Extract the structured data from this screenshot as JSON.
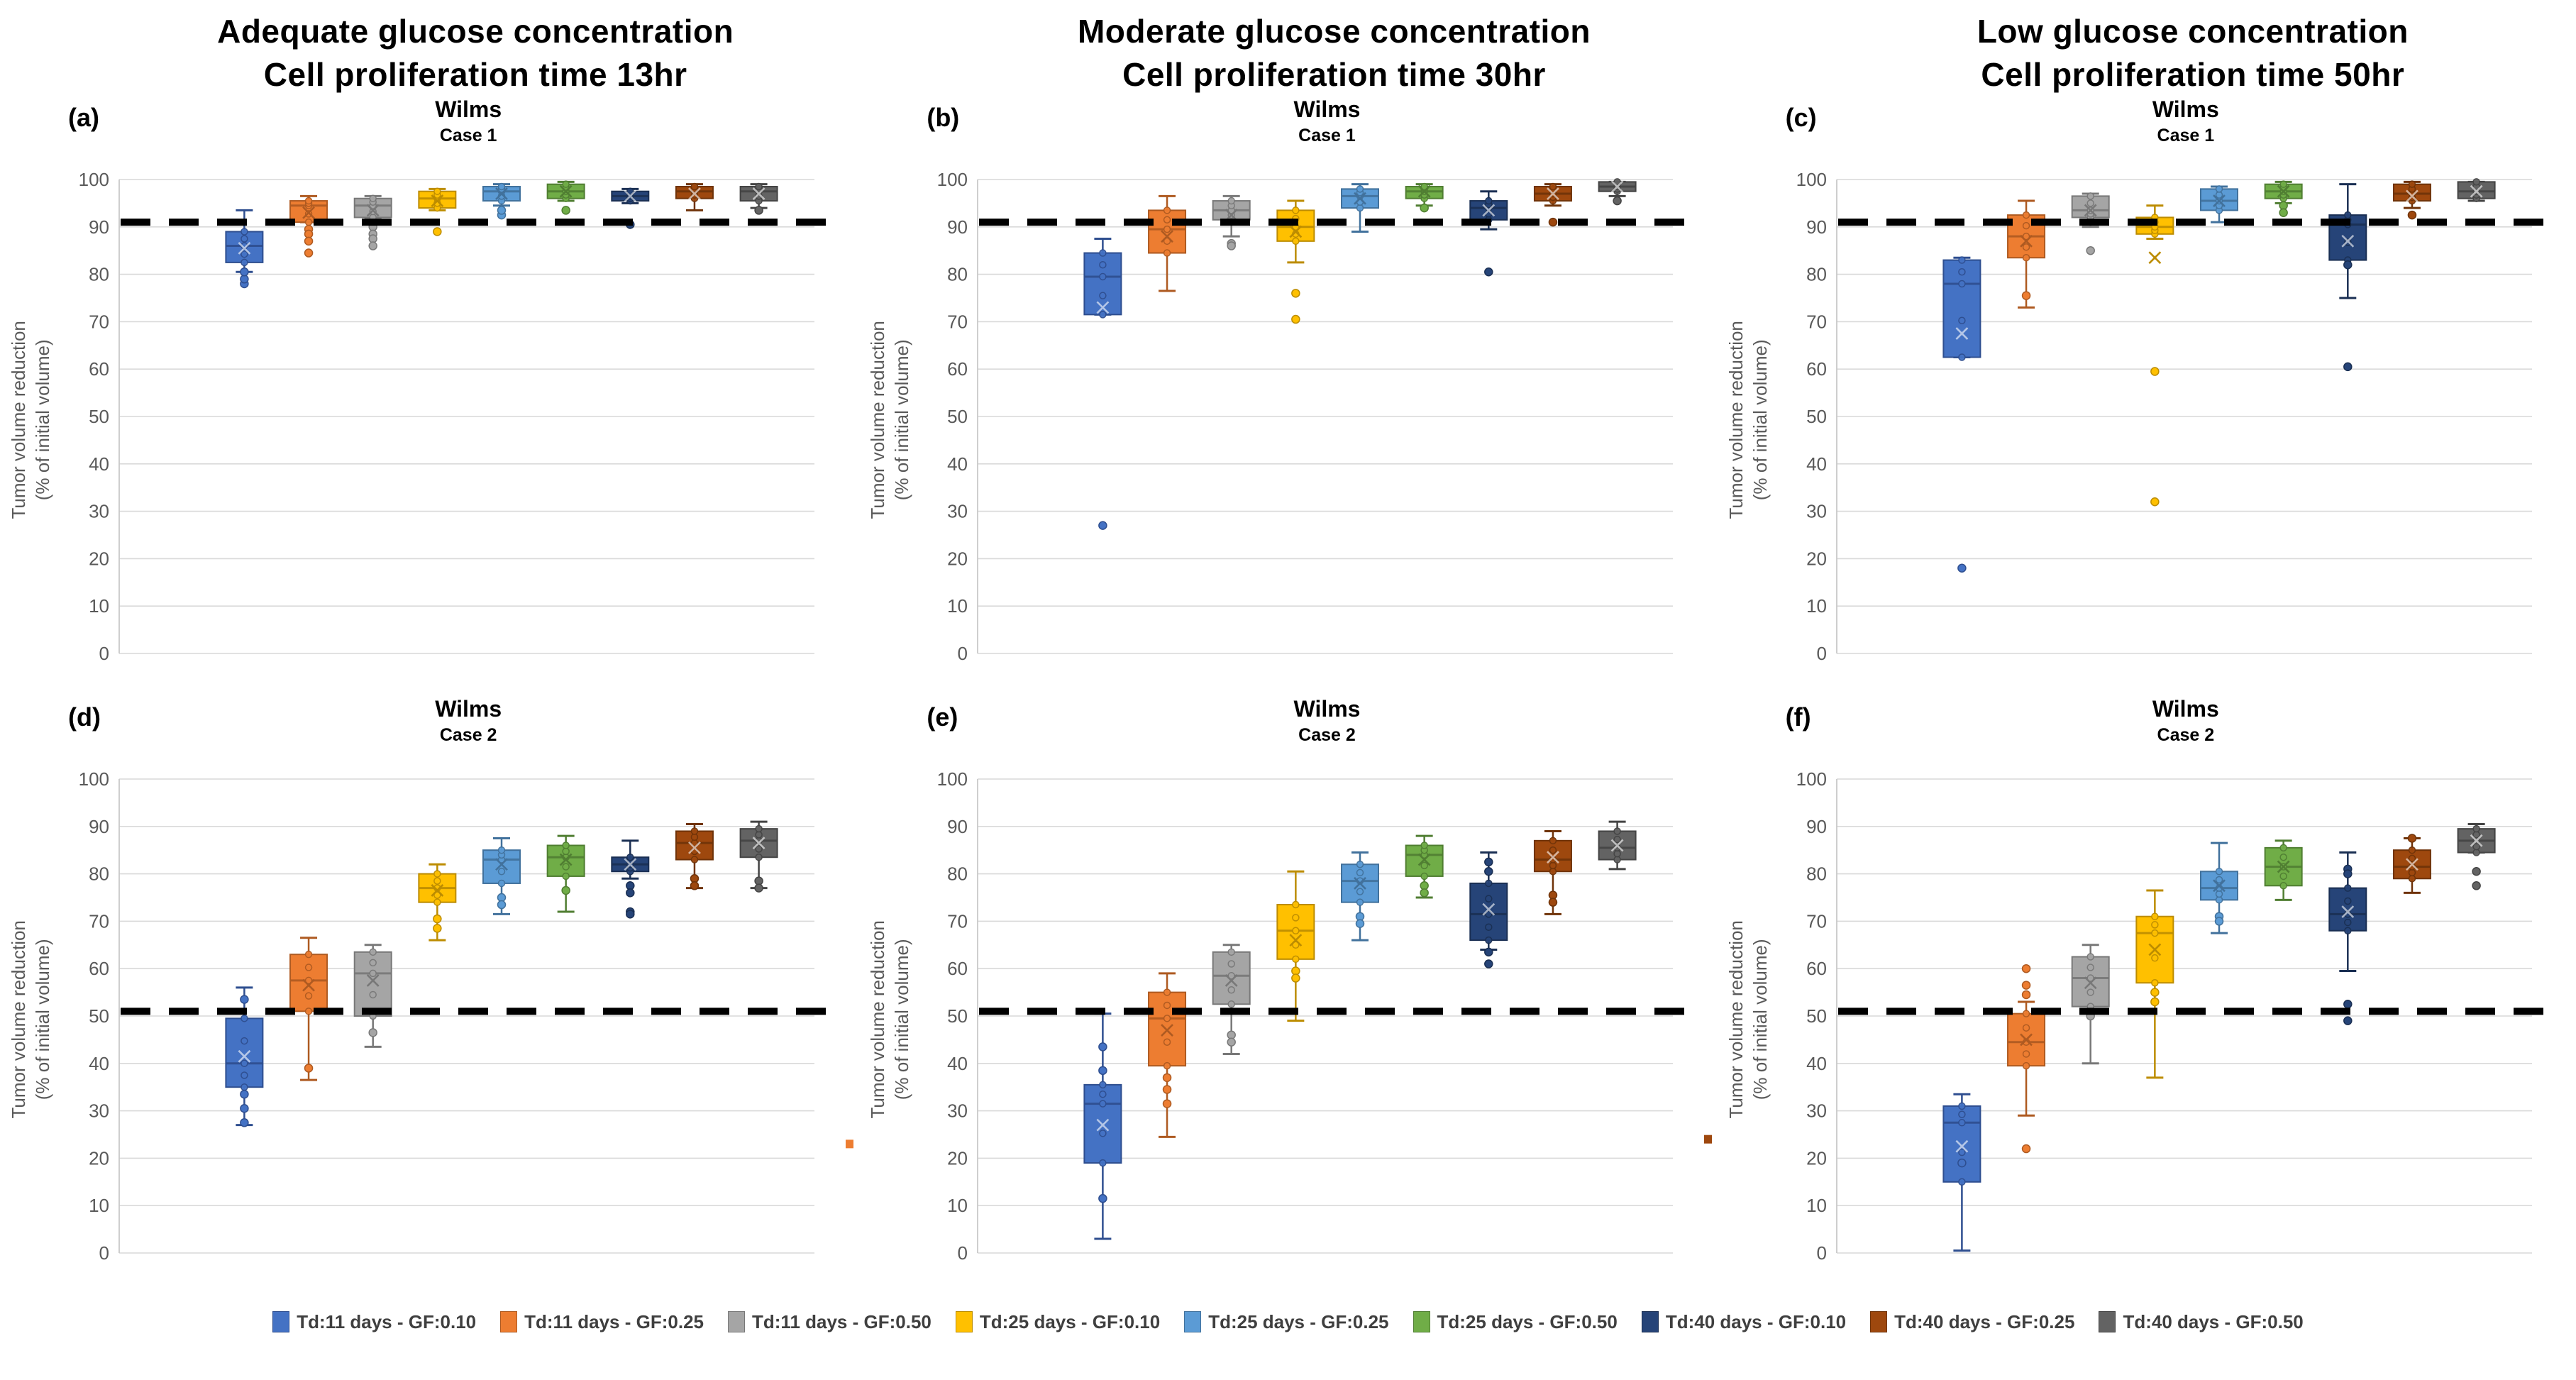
{
  "figure": {
    "column_headers": [
      {
        "line1": "Adequate glucose concentration",
        "line2": "Cell proliferation time 13hr"
      },
      {
        "line1": "Moderate glucose concentration",
        "line2": "Cell proliferation time 30hr"
      },
      {
        "line1": "Low glucose concentration",
        "line2": "Cell proliferation time 50hr"
      }
    ],
    "y_axis_label_line1": "Tumor volume reduction",
    "y_axis_label_line2": "(% of initial volume)",
    "plot_colors": {
      "background": "#FFFFFF",
      "grid": "#D9D9D9",
      "axis": "#C9C9C9",
      "tick_text": "#595959",
      "threshold": "#000000"
    }
  },
  "legend": [
    {
      "label": "Td:11 days - GF:0.10",
      "fill": "#4472C4",
      "edge": "#2E4E8F"
    },
    {
      "label": "Td:11 days - GF:0.25",
      "fill": "#ED7D31",
      "edge": "#AE5A21"
    },
    {
      "label": "Td:11 days - GF:0.50",
      "fill": "#A5A5A5",
      "edge": "#787878"
    },
    {
      "label": "Td:25 days - GF:0.10",
      "fill": "#FFC000",
      "edge": "#BC8C00"
    },
    {
      "label": "Td:25 days - GF:0.25",
      "fill": "#5B9BD5",
      "edge": "#41719C"
    },
    {
      "label": "Td:25 days - GF:0.50",
      "fill": "#70AD47",
      "edge": "#507E32"
    },
    {
      "label": "Td:40 days - GF:0.10",
      "fill": "#264478",
      "edge": "#1A2F53"
    },
    {
      "label": "Td:40 days - GF:0.25",
      "fill": "#9E480E",
      "edge": "#6F3309"
    },
    {
      "label": "Td:40 days - GF:0.50",
      "fill": "#636363",
      "edge": "#444444"
    }
  ],
  "chart_data": [
    {
      "id": "a",
      "panel_label": "(a)",
      "title": "Wilms",
      "subtitle": "Case 1",
      "type": "box",
      "threshold": 91,
      "ylim": [
        0,
        100
      ],
      "ytick_step": 10,
      "series": [
        {
          "name": "Td:11 days - GF:0.10",
          "lo": 80.5,
          "q1": 82.5,
          "med": 86,
          "q3": 89,
          "hi": 93.5,
          "mean": 85.5,
          "out": [
            78,
            79,
            80.5
          ]
        },
        {
          "name": "Td:11 days - GF:0.25",
          "lo": 91,
          "q1": 91,
          "med": 94.5,
          "q3": 95.5,
          "hi": 96.5,
          "mean": 93,
          "out": [
            89.5,
            88.5,
            87,
            84.5
          ]
        },
        {
          "name": "Td:11 days - GF:0.50",
          "lo": 92,
          "q1": 92,
          "med": 94.5,
          "q3": 96,
          "hi": 96.5,
          "mean": 93.5,
          "out": [
            90,
            88.5,
            87.5,
            86
          ]
        },
        {
          "name": "Td:25 days - GF:0.10",
          "lo": 93.5,
          "q1": 94,
          "med": 96,
          "q3": 97.5,
          "hi": 98,
          "mean": 95.5,
          "out": [
            89
          ]
        },
        {
          "name": "Td:25 days - GF:0.25",
          "lo": 94.5,
          "q1": 95.5,
          "med": 97.5,
          "q3": 98.5,
          "hi": 99,
          "mean": 97,
          "out": [
            92.5,
            93.5
          ]
        },
        {
          "name": "Td:25 days - GF:0.50",
          "lo": 95.5,
          "q1": 96,
          "med": 97.5,
          "q3": 99,
          "hi": 99.5,
          "mean": 97.5,
          "out": [
            93.5
          ]
        },
        {
          "name": "Td:40 days - GF:0.10",
          "lo": 95,
          "q1": 95.5,
          "med": 96.5,
          "q3": 97.5,
          "hi": 98,
          "mean": 96.5,
          "out": [
            90.5
          ]
        },
        {
          "name": "Td:40 days - GF:0.25",
          "lo": 93.5,
          "q1": 96,
          "med": 97.5,
          "q3": 98.5,
          "hi": 99,
          "mean": 97,
          "out": []
        },
        {
          "name": "Td:40 days - GF:0.50",
          "lo": 94,
          "q1": 95.5,
          "med": 97.5,
          "q3": 98.5,
          "hi": 99,
          "mean": 97,
          "out": [
            93.5
          ]
        }
      ]
    },
    {
      "id": "b",
      "panel_label": "(b)",
      "title": "Wilms",
      "subtitle": "Case 1",
      "type": "box",
      "threshold": 91,
      "ylim": [
        0,
        100
      ],
      "ytick_step": 10,
      "series": [
        {
          "name": "Td:11 days - GF:0.10",
          "lo": 71.5,
          "q1": 71.5,
          "med": 79.5,
          "q3": 84.5,
          "hi": 87.5,
          "mean": 73,
          "out": [
            27
          ]
        },
        {
          "name": "Td:11 days - GF:0.25",
          "lo": 76.5,
          "q1": 84.5,
          "med": 89.5,
          "q3": 93.5,
          "hi": 96.5,
          "mean": 88,
          "out": []
        },
        {
          "name": "Td:11 days - GF:0.50",
          "lo": 88,
          "q1": 91.5,
          "med": 93.5,
          "q3": 95.5,
          "hi": 96.5,
          "mean": 92.5,
          "out": [
            86.5,
            86
          ]
        },
        {
          "name": "Td:25 days - GF:0.10",
          "lo": 82.5,
          "q1": 87,
          "med": 90,
          "q3": 93.5,
          "hi": 95.5,
          "mean": 89,
          "out": [
            76,
            70.5
          ]
        },
        {
          "name": "Td:25 days - GF:0.25",
          "lo": 89,
          "q1": 94,
          "med": 96.5,
          "q3": 98,
          "hi": 99,
          "mean": 96,
          "out": []
        },
        {
          "name": "Td:25 days - GF:0.50",
          "lo": 94.5,
          "q1": 96,
          "med": 97.5,
          "q3": 98.5,
          "hi": 99,
          "mean": 97.5,
          "out": [
            94
          ]
        },
        {
          "name": "Td:40 days - GF:0.10",
          "lo": 89.5,
          "q1": 91.5,
          "med": 94,
          "q3": 95.5,
          "hi": 97.5,
          "mean": 93.5,
          "out": [
            80.5
          ]
        },
        {
          "name": "Td:40 days - GF:0.25",
          "lo": 94.5,
          "q1": 95.5,
          "med": 97,
          "q3": 98.5,
          "hi": 99,
          "mean": 97,
          "out": [
            91
          ]
        },
        {
          "name": "Td:40 days - GF:0.50",
          "lo": 96.5,
          "q1": 97.5,
          "med": 98.5,
          "q3": 99.5,
          "hi": 99.5,
          "mean": 98.5,
          "out": [
            95.5
          ]
        }
      ]
    },
    {
      "id": "c",
      "panel_label": "(c)",
      "title": "Wilms",
      "subtitle": "Case 1",
      "type": "box",
      "threshold": 91,
      "ylim": [
        0,
        100
      ],
      "ytick_step": 10,
      "series": [
        {
          "name": "Td:11 days - GF:0.10",
          "lo": 62.5,
          "q1": 62.5,
          "med": 78,
          "q3": 83,
          "hi": 83.5,
          "mean": 67.5,
          "out": [
            18
          ]
        },
        {
          "name": "Td:11 days - GF:0.25",
          "lo": 73,
          "q1": 83.5,
          "med": 88,
          "q3": 92.5,
          "hi": 95.5,
          "mean": 87,
          "out": [
            75.5
          ]
        },
        {
          "name": "Td:11 days - GF:0.50",
          "lo": 90,
          "q1": 92,
          "med": 93.5,
          "q3": 96.5,
          "hi": 97,
          "mean": 93.5,
          "out": [
            85
          ]
        },
        {
          "name": "Td:25 days - GF:0.10",
          "lo": 87.5,
          "q1": 88.5,
          "med": 90,
          "q3": 92,
          "hi": 94.5,
          "mean": 83.5,
          "out": [
            59.5,
            32
          ]
        },
        {
          "name": "Td:25 days - GF:0.25",
          "lo": 91,
          "q1": 93.5,
          "med": 95.5,
          "q3": 98,
          "hi": 98.5,
          "mean": 95.5,
          "out": []
        },
        {
          "name": "Td:25 days - GF:0.50",
          "lo": 95,
          "q1": 96,
          "med": 97.5,
          "q3": 99,
          "hi": 99.5,
          "mean": 97.5,
          "out": [
            94.5,
            93
          ]
        },
        {
          "name": "Td:40 days - GF:0.10",
          "lo": 75,
          "q1": 83,
          "med": 90.5,
          "q3": 92.5,
          "hi": 99,
          "mean": 87,
          "out": [
            82,
            60.5
          ]
        },
        {
          "name": "Td:40 days - GF:0.25",
          "lo": 94,
          "q1": 95.5,
          "med": 97,
          "q3": 99,
          "hi": 99.5,
          "mean": 96.5,
          "out": [
            92.5
          ]
        },
        {
          "name": "Td:40 days - GF:0.50",
          "lo": 95.5,
          "q1": 96,
          "med": 97.5,
          "q3": 99.5,
          "hi": 99.5,
          "mean": 97.5,
          "out": []
        }
      ]
    },
    {
      "id": "d",
      "panel_label": "(d)",
      "title": "Wilms",
      "subtitle": "Case 2",
      "type": "box",
      "threshold": 51,
      "ylim": [
        0,
        100
      ],
      "ytick_step": 10,
      "stray_marker": {
        "value": 23,
        "color": "#ED7D31"
      },
      "series": [
        {
          "name": "Td:11 days - GF:0.10",
          "lo": 27,
          "q1": 35,
          "med": 40,
          "q3": 49.5,
          "hi": 56,
          "mean": 41.5,
          "out": [
            53.5,
            33.5,
            30.5,
            27.5
          ]
        },
        {
          "name": "Td:11 days - GF:0.25",
          "lo": 36.5,
          "q1": 51,
          "med": 57.5,
          "q3": 63,
          "hi": 66.5,
          "mean": 56.5,
          "out": [
            39
          ]
        },
        {
          "name": "Td:11 days - GF:0.50",
          "lo": 43.5,
          "q1": 50,
          "med": 59,
          "q3": 63.5,
          "hi": 65,
          "mean": 57.5,
          "out": [
            46.5
          ]
        },
        {
          "name": "Td:25 days - GF:0.10",
          "lo": 66,
          "q1": 74,
          "med": 77,
          "q3": 80,
          "hi": 82,
          "mean": 76.5,
          "out": [
            70.5,
            68.5
          ]
        },
        {
          "name": "Td:25 days - GF:0.25",
          "lo": 71.5,
          "q1": 78,
          "med": 83,
          "q3": 85,
          "hi": 87.5,
          "mean": 82,
          "out": [
            75,
            73.5
          ]
        },
        {
          "name": "Td:25 days - GF:0.50",
          "lo": 72,
          "q1": 79.5,
          "med": 83.5,
          "q3": 86,
          "hi": 88,
          "mean": 83,
          "out": [
            76.5
          ]
        },
        {
          "name": "Td:40 days - GF:0.10",
          "lo": 79,
          "q1": 80.5,
          "med": 82,
          "q3": 83.5,
          "hi": 87,
          "mean": 82,
          "out": [
            77.5,
            76,
            72,
            71.5
          ]
        },
        {
          "name": "Td:40 days - GF:0.25",
          "lo": 77,
          "q1": 83,
          "med": 86.5,
          "q3": 89,
          "hi": 90.5,
          "mean": 85.5,
          "out": [
            79,
            77.5
          ]
        },
        {
          "name": "Td:40 days - GF:0.50",
          "lo": 77,
          "q1": 83.5,
          "med": 87,
          "q3": 89.5,
          "hi": 91,
          "mean": 86.5,
          "out": [
            78.5,
            77
          ]
        }
      ]
    },
    {
      "id": "e",
      "panel_label": "(e)",
      "title": "Wilms",
      "subtitle": "Case 2",
      "type": "box",
      "threshold": 51,
      "ylim": [
        0,
        100
      ],
      "ytick_step": 10,
      "stray_marker": {
        "value": 24,
        "color": "#9E480E"
      },
      "series": [
        {
          "name": "Td:11 days - GF:0.10",
          "lo": 3,
          "q1": 19,
          "med": 31.5,
          "q3": 35.5,
          "hi": 50.5,
          "mean": 27,
          "out": [
            43.5,
            38.5,
            11.5
          ]
        },
        {
          "name": "Td:11 days - GF:0.25",
          "lo": 24.5,
          "q1": 39.5,
          "med": 49.5,
          "q3": 55,
          "hi": 59,
          "mean": 47,
          "out": [
            37,
            34.5,
            31.5
          ]
        },
        {
          "name": "Td:11 days - GF:0.50",
          "lo": 42,
          "q1": 52.5,
          "med": 58.5,
          "q3": 63.5,
          "hi": 65,
          "mean": 57.5,
          "out": [
            46,
            44.5
          ]
        },
        {
          "name": "Td:25 days - GF:0.10",
          "lo": 49,
          "q1": 62,
          "med": 68,
          "q3": 73.5,
          "hi": 80.5,
          "mean": 66,
          "out": [
            59.5,
            58
          ]
        },
        {
          "name": "Td:25 days - GF:0.25",
          "lo": 66,
          "q1": 74,
          "med": 78.5,
          "q3": 82,
          "hi": 84.5,
          "mean": 78,
          "out": [
            71,
            69.5
          ]
        },
        {
          "name": "Td:25 days - GF:0.50",
          "lo": 75,
          "q1": 79.5,
          "med": 84,
          "q3": 86,
          "hi": 88,
          "mean": 83,
          "out": [
            77.5,
            76
          ]
        },
        {
          "name": "Td:40 days - GF:0.10",
          "lo": 64,
          "q1": 66,
          "med": 71.5,
          "q3": 78,
          "hi": 84.5,
          "mean": 72.5,
          "out": [
            82.5,
            80.5,
            63.5,
            61
          ]
        },
        {
          "name": "Td:40 days - GF:0.25",
          "lo": 71.5,
          "q1": 80.5,
          "med": 83,
          "q3": 87,
          "hi": 89,
          "mean": 83.5,
          "out": [
            75.5,
            74
          ]
        },
        {
          "name": "Td:40 days - GF:0.50",
          "lo": 81,
          "q1": 83,
          "med": 85.5,
          "q3": 89,
          "hi": 91,
          "mean": 86,
          "out": []
        }
      ]
    },
    {
      "id": "f",
      "panel_label": "(f)",
      "title": "Wilms",
      "subtitle": "Case 2",
      "type": "box",
      "threshold": 51,
      "ylim": [
        0,
        100
      ],
      "ytick_step": 10,
      "series": [
        {
          "name": "Td:11 days - GF:0.10",
          "lo": 0.5,
          "q1": 15,
          "med": 27.5,
          "q3": 31,
          "hi": 33.5,
          "mean": 22.5,
          "out": [
            19
          ]
        },
        {
          "name": "Td:11 days - GF:0.25",
          "lo": 29,
          "q1": 39.5,
          "med": 44.5,
          "q3": 50.5,
          "hi": 53,
          "mean": 45,
          "out": [
            60,
            56.5,
            54.5,
            22
          ]
        },
        {
          "name": "Td:11 days - GF:0.50",
          "lo": 40,
          "q1": 52,
          "med": 58,
          "q3": 62.5,
          "hi": 65,
          "mean": 57,
          "out": [
            50
          ]
        },
        {
          "name": "Td:25 days - GF:0.10",
          "lo": 37,
          "q1": 57,
          "med": 67.5,
          "q3": 71,
          "hi": 76.5,
          "mean": 64,
          "out": [
            55,
            53
          ]
        },
        {
          "name": "Td:25 days - GF:0.25",
          "lo": 67.5,
          "q1": 74.5,
          "med": 77,
          "q3": 80.5,
          "hi": 86.5,
          "mean": 77.5,
          "out": [
            71,
            70
          ]
        },
        {
          "name": "Td:25 days - GF:0.50",
          "lo": 74.5,
          "q1": 77.5,
          "med": 81.5,
          "q3": 85.5,
          "hi": 87,
          "mean": 81.5,
          "out": []
        },
        {
          "name": "Td:40 days - GF:0.10",
          "lo": 59.5,
          "q1": 68,
          "med": 71.5,
          "q3": 77,
          "hi": 84.5,
          "mean": 72,
          "out": [
            81,
            80,
            52.5,
            49
          ]
        },
        {
          "name": "Td:40 days - GF:0.25",
          "lo": 76,
          "q1": 79,
          "med": 81.5,
          "q3": 85,
          "hi": 87.5,
          "mean": 82,
          "out": [
            87.5
          ]
        },
        {
          "name": "Td:40 days - GF:0.50",
          "lo": 84.5,
          "q1": 84.5,
          "med": 87,
          "q3": 89.5,
          "hi": 90.5,
          "mean": 87,
          "out": [
            80.5,
            77.5
          ]
        }
      ]
    }
  ]
}
